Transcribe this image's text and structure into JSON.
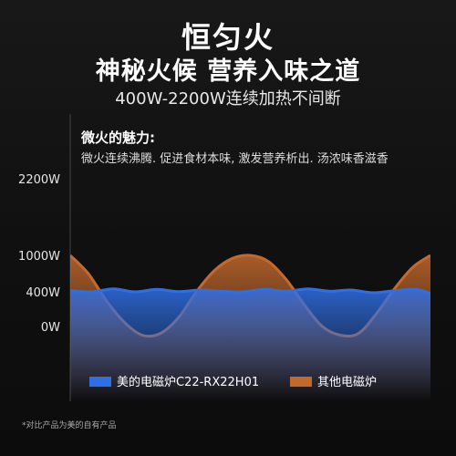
{
  "header": {
    "title": "恒匀火",
    "subtitle": "神秘火候 营养入味之道",
    "tagline": "400W-2200W连续加热不间断"
  },
  "note": {
    "heading": "微火的魅力:",
    "text": "微火连续沸腾. 促进食材本味, 激发营养析出. 汤浓味香滋香"
  },
  "footnote": "*对比产品为美的自有产品",
  "colors": {
    "midea": "#2f6fe6",
    "other": "#c4692c"
  },
  "chart_data": {
    "type": "line",
    "title": "",
    "xlabel": "",
    "ylabel": "",
    "y_ticks": [
      "2200W",
      "1000W",
      "400W",
      "0W"
    ],
    "y_tick_values": [
      2200,
      1000,
      400,
      0
    ],
    "legend_position": "bottom",
    "grid": false,
    "series": [
      {
        "name": "美的电磁炉C22-RX22H01",
        "color_key": "midea",
        "x": [
          0,
          0.06,
          0.12,
          0.18,
          0.24,
          0.3,
          0.36,
          0.42,
          0.48,
          0.54,
          0.6,
          0.66,
          0.72,
          0.78,
          0.84,
          0.9,
          0.96,
          1.0
        ],
        "y": [
          420,
          400,
          450,
          400,
          440,
          405,
          430,
          410,
          400,
          440,
          410,
          450,
          410,
          430,
          390,
          420,
          440,
          380
        ]
      },
      {
        "name": "其他电磁炉",
        "color_key": "other",
        "x": [
          0,
          0.05,
          0.1,
          0.15,
          0.2,
          0.25,
          0.3,
          0.35,
          0.4,
          0.45,
          0.5,
          0.55,
          0.6,
          0.65,
          0.7,
          0.75,
          0.8,
          0.85,
          0.9,
          0.95,
          1.0
        ],
        "y": [
          1000,
          700,
          300,
          50,
          -100,
          -80,
          100,
          400,
          750,
          950,
          1000,
          900,
          600,
          250,
          0,
          -100,
          -80,
          150,
          450,
          800,
          1000
        ]
      }
    ]
  }
}
